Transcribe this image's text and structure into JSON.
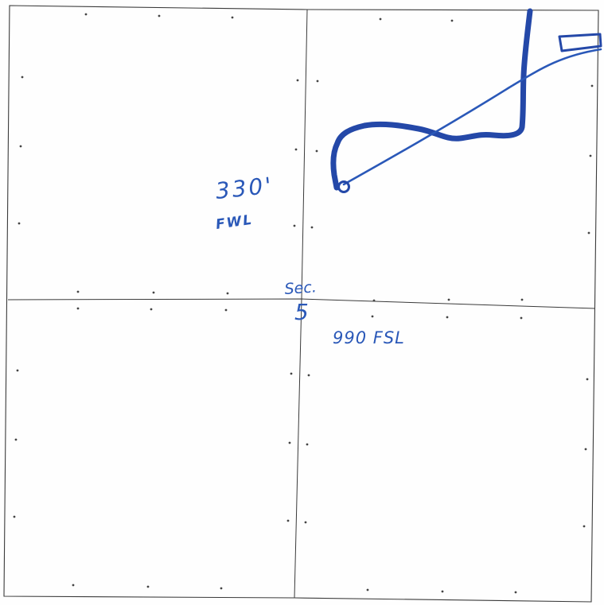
{
  "section_map": {
    "annotations": {
      "offset_west": "330'",
      "offset_west_ref": "FWL",
      "section_prefix": "Sec.",
      "section_number": "5",
      "offset_south": "990 FSL"
    },
    "colors": {
      "ink": "#2a58b8",
      "ink_dark": "#2448a8",
      "grid": "#3a3a3a",
      "dot": "#444444"
    }
  }
}
